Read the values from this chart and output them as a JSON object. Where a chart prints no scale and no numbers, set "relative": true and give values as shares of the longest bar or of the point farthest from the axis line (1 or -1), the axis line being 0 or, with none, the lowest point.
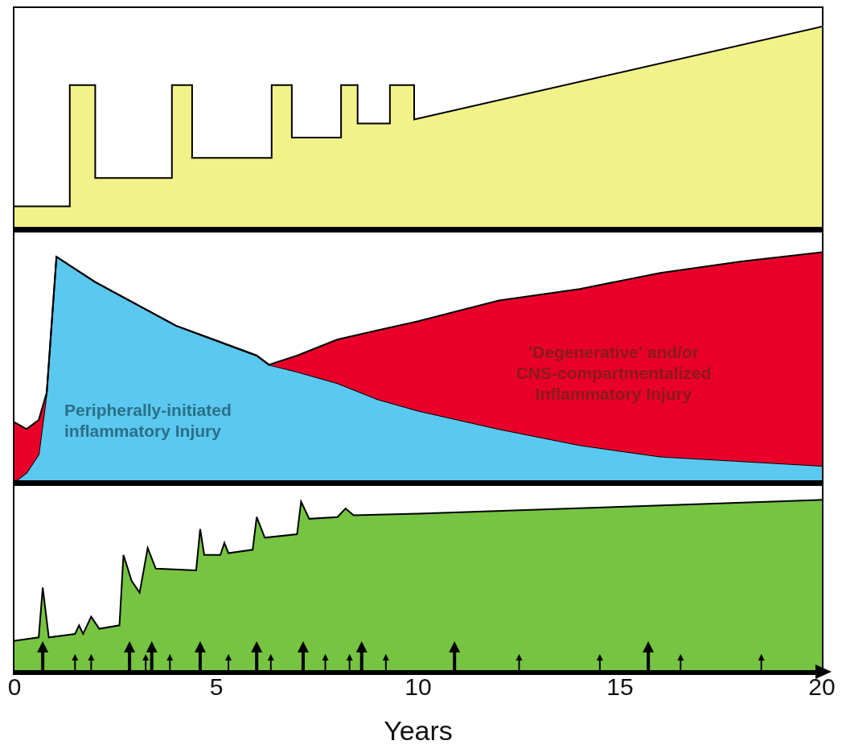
{
  "chart_data": [
    {
      "type": "area",
      "relative": true,
      "xlim": [
        0,
        20
      ],
      "tick_labels": false,
      "series": [
        {
          "color": "#f2f28a",
          "x": [
            0,
            1.37,
            1.37,
            2.0,
            2.0,
            3.9,
            3.9,
            4.4,
            4.4,
            6.37,
            6.37,
            6.87,
            6.87,
            8.09,
            8.09,
            8.5,
            8.5,
            9.3,
            9.3,
            9.9,
            9.9,
            20
          ],
          "values": [
            0.11,
            0.11,
            0.71,
            0.71,
            0.25,
            0.25,
            0.71,
            0.71,
            0.35,
            0.35,
            0.71,
            0.71,
            0.45,
            0.45,
            0.71,
            0.71,
            0.52,
            0.52,
            0.71,
            0.71,
            0.54,
            1
          ]
        }
      ]
    },
    {
      "type": "area",
      "relative": true,
      "stacked": true,
      "xlim": [
        0,
        20
      ],
      "tick_labels": false,
      "x": [
        0,
        0.3,
        0.6,
        0.8,
        1.04,
        2,
        4,
        6,
        6.3,
        7,
        8,
        9,
        10,
        12,
        14,
        16,
        18,
        20
      ],
      "series": [
        {
          "name": "Peripherally-initiated inflammatory Injury",
          "color": "#5bc8f0",
          "values": [
            0,
            0.04,
            0.12,
            0.39,
            0.98,
            0.87,
            0.68,
            0.55,
            0.51,
            0.48,
            0.43,
            0.36,
            0.31,
            0.23,
            0.16,
            0.11,
            0.09,
            0.07
          ]
        },
        {
          "name": "'Degenerative' and/or CNS-compartmentalized Inflammatory Injury",
          "color": "#e8002a",
          "values": [
            0.26,
            0.19,
            0.15,
            0,
            0,
            0,
            0,
            0,
            0,
            0.07,
            0.19,
            0.3,
            0.39,
            0.56,
            0.68,
            0.8,
            0.87,
            0.93
          ]
        }
      ]
    },
    {
      "type": "area",
      "relative": true,
      "xlim": [
        0,
        20
      ],
      "xticks": [
        0,
        5,
        10,
        15,
        20
      ],
      "xlabel": "Years",
      "tick_labels": "x",
      "series": [
        {
          "color": "#76c442",
          "x": [
            0,
            0.6,
            0.7,
            0.85,
            1.5,
            1.6,
            1.7,
            1.9,
            2.1,
            2.6,
            2.7,
            2.9,
            3.1,
            3.3,
            3.5,
            4.5,
            4.6,
            4.7,
            5.1,
            5.2,
            5.3,
            5.9,
            6.0,
            6.2,
            7,
            7.1,
            7.3,
            8,
            8.2,
            8.4,
            10,
            15,
            20
          ],
          "values": [
            0.18,
            0.2,
            0.49,
            0.2,
            0.22,
            0.27,
            0.22,
            0.32,
            0.25,
            0.27,
            0.68,
            0.53,
            0.46,
            0.72,
            0.6,
            0.59,
            0.83,
            0.68,
            0.68,
            0.75,
            0.69,
            0.71,
            0.9,
            0.78,
            0.8,
            0.99,
            0.89,
            0.9,
            0.95,
            0.91,
            0.92,
            0.96,
            1
          ]
        }
      ]
    }
  ]
}
